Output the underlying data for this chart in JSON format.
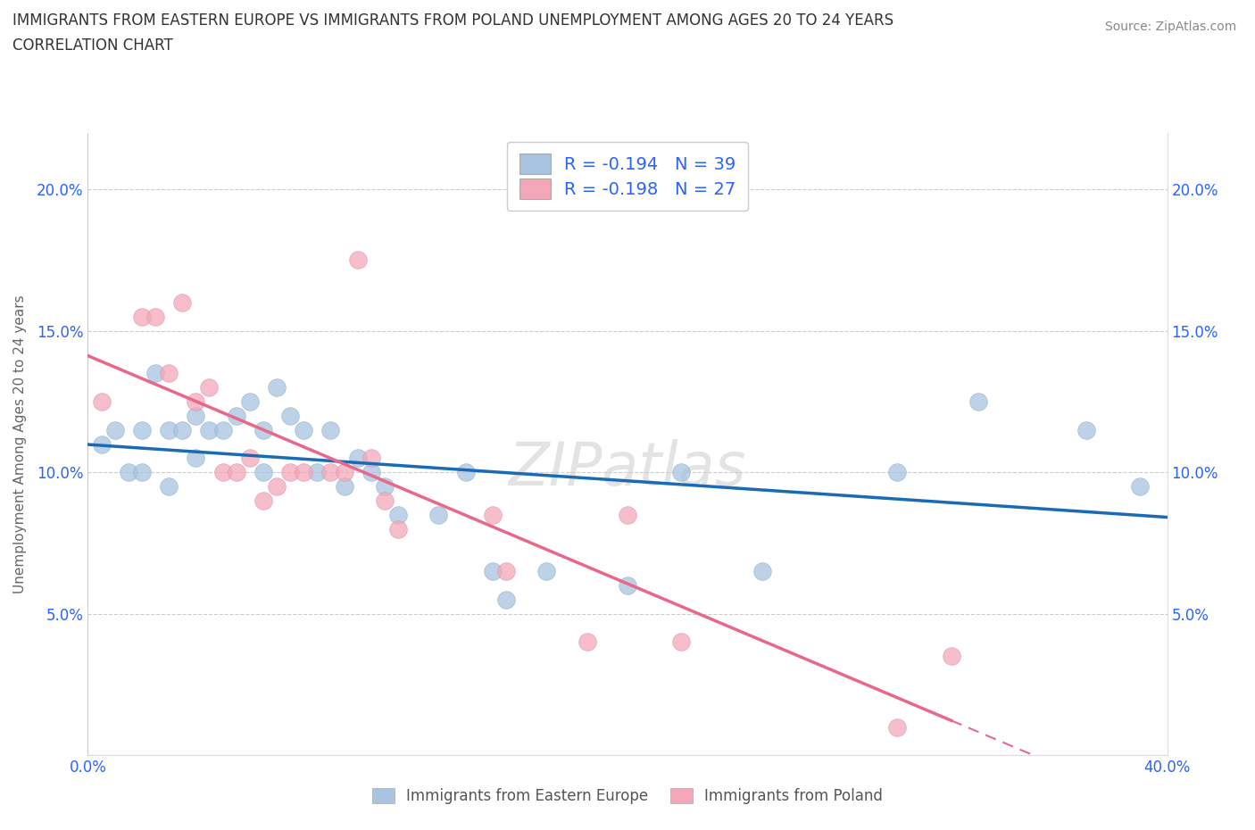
{
  "title_line1": "IMMIGRANTS FROM EASTERN EUROPE VS IMMIGRANTS FROM POLAND UNEMPLOYMENT AMONG AGES 20 TO 24 YEARS",
  "title_line2": "CORRELATION CHART",
  "source_text": "Source: ZipAtlas.com",
  "ylabel": "Unemployment Among Ages 20 to 24 years",
  "xlim": [
    0.0,
    0.4
  ],
  "ylim": [
    0.0,
    0.22
  ],
  "xticks": [
    0.0,
    0.1,
    0.2,
    0.3,
    0.4
  ],
  "yticks": [
    0.0,
    0.05,
    0.1,
    0.15,
    0.2
  ],
  "watermark": "ZIPatlas",
  "legend_r1": "R = -0.194",
  "legend_n1": "N = 39",
  "legend_r2": "R = -0.198",
  "legend_n2": "N = 27",
  "color_eastern": "#a8c4e0",
  "color_poland": "#f4a7b9",
  "color_text_blue": "#2962ff",
  "color_line_eastern": "#1a6bb5",
  "color_line_poland": "#e8688a",
  "eastern_x": [
    0.005,
    0.01,
    0.015,
    0.02,
    0.02,
    0.025,
    0.03,
    0.03,
    0.035,
    0.04,
    0.04,
    0.045,
    0.05,
    0.055,
    0.06,
    0.065,
    0.065,
    0.07,
    0.075,
    0.08,
    0.085,
    0.09,
    0.095,
    0.1,
    0.105,
    0.11,
    0.115,
    0.13,
    0.14,
    0.15,
    0.155,
    0.17,
    0.2,
    0.22,
    0.25,
    0.3,
    0.33,
    0.37,
    0.39
  ],
  "eastern_y": [
    0.11,
    0.115,
    0.1,
    0.115,
    0.1,
    0.135,
    0.115,
    0.095,
    0.115,
    0.105,
    0.12,
    0.115,
    0.115,
    0.12,
    0.125,
    0.115,
    0.1,
    0.13,
    0.12,
    0.115,
    0.1,
    0.115,
    0.095,
    0.105,
    0.1,
    0.095,
    0.085,
    0.085,
    0.1,
    0.065,
    0.055,
    0.065,
    0.06,
    0.1,
    0.065,
    0.1,
    0.125,
    0.115,
    0.095
  ],
  "poland_x": [
    0.005,
    0.02,
    0.025,
    0.03,
    0.035,
    0.04,
    0.045,
    0.05,
    0.055,
    0.06,
    0.065,
    0.07,
    0.075,
    0.08,
    0.09,
    0.095,
    0.1,
    0.105,
    0.11,
    0.115,
    0.15,
    0.155,
    0.185,
    0.2,
    0.22,
    0.3,
    0.32
  ],
  "poland_y": [
    0.125,
    0.155,
    0.155,
    0.135,
    0.16,
    0.125,
    0.13,
    0.1,
    0.1,
    0.105,
    0.09,
    0.095,
    0.1,
    0.1,
    0.1,
    0.1,
    0.175,
    0.105,
    0.09,
    0.08,
    0.085,
    0.065,
    0.04,
    0.085,
    0.04,
    0.01,
    0.035
  ]
}
